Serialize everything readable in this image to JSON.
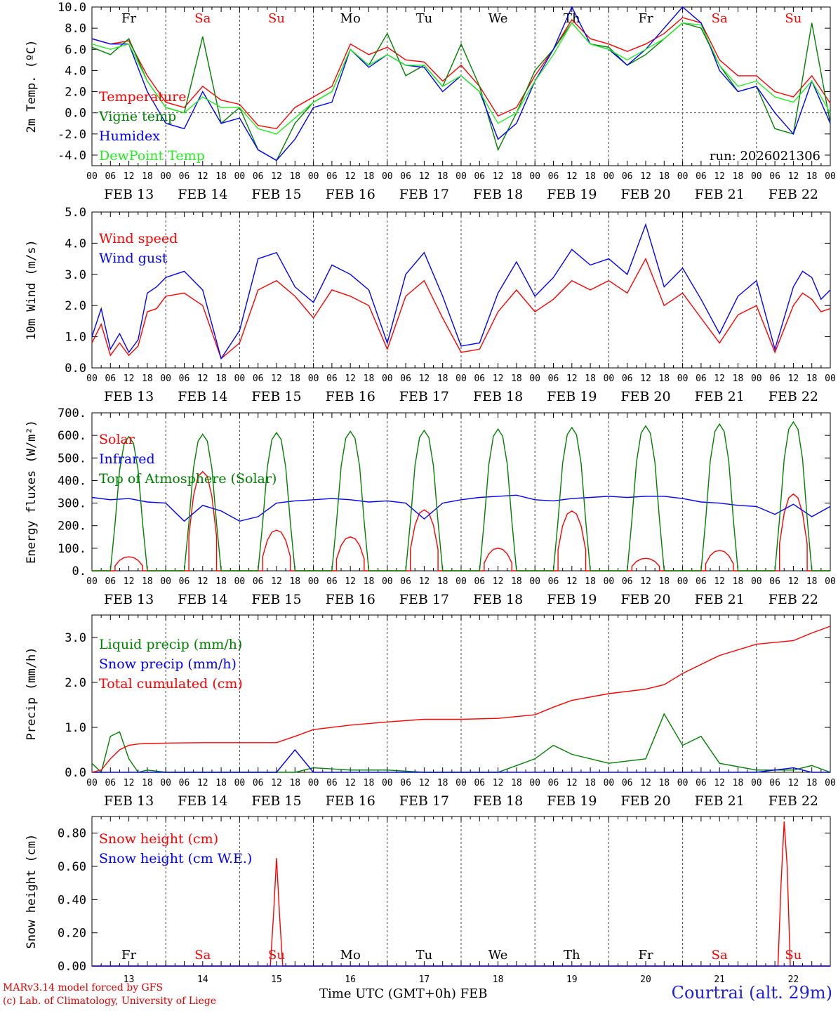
{
  "days": {
    "names": [
      "Fr",
      "Sa",
      "Su",
      "Mo",
      "Tu",
      "We",
      "Th",
      "Fr",
      "Sa",
      "Su"
    ],
    "weekend": [
      false,
      true,
      true,
      false,
      false,
      false,
      false,
      false,
      true,
      true
    ],
    "dates": [
      "FEB 13",
      "FEB 14",
      "FEB 15",
      "FEB 16",
      "FEB 17",
      "FEB 18",
      "FEB 19",
      "FEB 20",
      "FEB 21",
      "FEB 22"
    ],
    "day_numbers": [
      "13",
      "14",
      "15",
      "16",
      "17",
      "18",
      "19",
      "20",
      "21",
      "22"
    ],
    "hour_ticks": [
      "00",
      "06",
      "12",
      "18"
    ],
    "final_tick": "00"
  },
  "colors": {
    "red": "#ff0000",
    "green": "#008000",
    "blue": "#0000ff",
    "lightgreen": "#22ee22"
  },
  "chart_data": [
    {
      "type": "line",
      "id": "temp",
      "ylabel": "2m Temp. (ºC)",
      "ylim": [
        -5.0,
        10.0
      ],
      "yticks": [
        "-4.0",
        "-2.0",
        "0.0",
        "2.0",
        "4.0",
        "6.0",
        "8.0",
        "10.0"
      ],
      "ytick_values": [
        -4,
        -2,
        0,
        2,
        4,
        6,
        8,
        10
      ],
      "run_label": "run: 2026021306",
      "x_hours": [
        0,
        6,
        12,
        18,
        24,
        30,
        36,
        42,
        48,
        54,
        60,
        66,
        72,
        78,
        84,
        90,
        96,
        102,
        108,
        114,
        120,
        126,
        132,
        138,
        144,
        150,
        156,
        162,
        168,
        174,
        180,
        186,
        192,
        198,
        204,
        210,
        216,
        222,
        228,
        234,
        240
      ],
      "series": [
        {
          "name": "Temperature",
          "color": "red",
          "values": [
            7.0,
            6.5,
            6.8,
            3.5,
            1.0,
            0.5,
            2.5,
            1.2,
            0.8,
            -1.2,
            -1.5,
            0.5,
            1.5,
            2.5,
            6.5,
            5.5,
            6.2,
            5.0,
            4.8,
            3.0,
            4.5,
            2.5,
            -0.3,
            0.5,
            3.5,
            6.0,
            8.8,
            7.0,
            6.5,
            5.8,
            6.5,
            7.5,
            9.0,
            8.5,
            5.0,
            3.5,
            3.5,
            2.0,
            1.5,
            3.5,
            0.9
          ]
        },
        {
          "name": "Vigne temp",
          "color": "green",
          "values": [
            6.2,
            5.5,
            7.0,
            3.0,
            0.5,
            0.0,
            7.2,
            -1.0,
            0.5,
            -3.5,
            -4.5,
            -1.0,
            1.0,
            2.0,
            6.0,
            4.5,
            7.5,
            3.5,
            4.5,
            2.5,
            6.5,
            2.5,
            -3.5,
            0.0,
            4.0,
            6.0,
            8.5,
            6.5,
            6.2,
            4.5,
            5.5,
            7.0,
            8.5,
            8.0,
            4.5,
            2.0,
            2.5,
            -1.5,
            -2.0,
            8.5,
            -1.0
          ]
        },
        {
          "name": "Humidex",
          "color": "blue",
          "values": [
            7.0,
            6.5,
            6.5,
            2.0,
            -1.0,
            -1.5,
            2.0,
            -1.0,
            -0.5,
            -3.5,
            -4.5,
            -2.5,
            0.5,
            1.0,
            6.0,
            4.3,
            5.5,
            4.5,
            4.3,
            2.0,
            3.5,
            2.0,
            -2.5,
            -1.0,
            3.0,
            6.0,
            10.0,
            6.5,
            6.0,
            4.5,
            6.0,
            8.0,
            10.0,
            8.5,
            4.0,
            2.0,
            2.5,
            0.0,
            -2.0,
            3.0,
            -1.0
          ]
        },
        {
          "name": "DewPoint Temp",
          "color": "lightgreen",
          "values": [
            6.5,
            6.0,
            6.5,
            3.0,
            0.5,
            0.0,
            1.5,
            0.5,
            0.5,
            -1.5,
            -2.0,
            -0.5,
            1.0,
            2.0,
            6.0,
            4.5,
            5.5,
            4.5,
            4.5,
            2.5,
            3.5,
            2.0,
            -1.0,
            0.0,
            3.0,
            5.5,
            8.5,
            6.5,
            6.0,
            5.0,
            6.0,
            7.0,
            8.5,
            8.3,
            4.5,
            2.5,
            3.0,
            1.5,
            1.0,
            3.0,
            0.0
          ]
        }
      ]
    },
    {
      "type": "line",
      "id": "wind",
      "ylabel": "10m Wind (m/s)",
      "ylim": [
        0.0,
        5.0
      ],
      "yticks": [
        "0.0",
        "1.0",
        "2.0",
        "3.0",
        "4.0",
        "5.0"
      ],
      "ytick_values": [
        0,
        1,
        2,
        3,
        4,
        5
      ],
      "x_hours": [
        0,
        3,
        6,
        9,
        12,
        15,
        18,
        21,
        24,
        30,
        36,
        42,
        48,
        54,
        60,
        66,
        72,
        78,
        84,
        90,
        96,
        102,
        108,
        114,
        120,
        126,
        132,
        138,
        144,
        150,
        156,
        162,
        168,
        174,
        180,
        186,
        192,
        198,
        204,
        210,
        216,
        222,
        228,
        231,
        234,
        237,
        240
      ],
      "series": [
        {
          "name": "Wind speed",
          "color": "red",
          "values": [
            0.8,
            1.4,
            0.4,
            0.8,
            0.4,
            0.7,
            1.8,
            1.9,
            2.3,
            2.4,
            2.0,
            0.3,
            0.8,
            2.5,
            2.8,
            2.3,
            1.6,
            2.5,
            2.3,
            2.0,
            0.6,
            2.3,
            2.8,
            1.6,
            0.5,
            0.6,
            1.8,
            2.5,
            1.8,
            2.2,
            2.8,
            2.5,
            2.8,
            2.4,
            3.5,
            2.0,
            2.4,
            1.6,
            0.8,
            1.7,
            2.0,
            0.5,
            2.0,
            2.4,
            2.2,
            1.8,
            1.9
          ]
        },
        {
          "name": "Wind gust",
          "color": "blue",
          "values": [
            1.0,
            1.9,
            0.6,
            1.1,
            0.5,
            0.9,
            2.4,
            2.6,
            2.9,
            3.1,
            2.5,
            0.3,
            1.2,
            3.5,
            3.7,
            2.6,
            2.1,
            3.3,
            3.0,
            2.5,
            0.8,
            3.0,
            3.7,
            2.3,
            0.7,
            0.8,
            2.4,
            3.4,
            2.3,
            2.9,
            3.8,
            3.3,
            3.5,
            3.0,
            4.6,
            2.6,
            3.2,
            2.2,
            1.1,
            2.3,
            2.8,
            0.6,
            2.6,
            3.1,
            2.9,
            2.2,
            2.5
          ]
        }
      ]
    },
    {
      "type": "line",
      "id": "flux",
      "ylabel": "Energy fluxes (W/m²)",
      "ylim": [
        0,
        700
      ],
      "yticks": [
        "0.",
        "100.",
        "200.",
        "300.",
        "400.",
        "500.",
        "600.",
        "700."
      ],
      "ytick_values": [
        0,
        100,
        200,
        300,
        400,
        500,
        600,
        700
      ],
      "daily_toa_peak": [
        595,
        605,
        612,
        618,
        622,
        628,
        635,
        642,
        650,
        660
      ],
      "daily_solar_peak": [
        62,
        440,
        180,
        150,
        270,
        100,
        265,
        55,
        90,
        340
      ],
      "x_hours": [
        0,
        6,
        12,
        18,
        24,
        30,
        36,
        42,
        48,
        54,
        60,
        66,
        72,
        78,
        84,
        90,
        96,
        102,
        108,
        114,
        120,
        126,
        132,
        138,
        144,
        150,
        156,
        162,
        168,
        174,
        180,
        186,
        192,
        198,
        204,
        210,
        216,
        222,
        228,
        234,
        240
      ],
      "series": [
        {
          "name": "Solar",
          "color": "red",
          "values": null
        },
        {
          "name": "Infrared",
          "color": "blue",
          "values": [
            325,
            315,
            320,
            305,
            300,
            220,
            290,
            265,
            220,
            240,
            300,
            310,
            315,
            320,
            315,
            305,
            310,
            300,
            230,
            300,
            315,
            325,
            330,
            335,
            315,
            310,
            320,
            325,
            330,
            325,
            330,
            330,
            320,
            305,
            300,
            290,
            285,
            250,
            295,
            240,
            285
          ]
        },
        {
          "name": "Top of Atmosphere (Solar)",
          "color": "green",
          "values": null
        }
      ]
    },
    {
      "type": "line",
      "id": "precip",
      "ylabel": "Precip (mm/h)",
      "ylim": [
        0.0,
        3.5
      ],
      "yticks": [
        "0.0",
        "1.0",
        "2.0",
        "3.0"
      ],
      "ytick_values": [
        0,
        1,
        2,
        3
      ],
      "x_hours": [
        0,
        3,
        6,
        9,
        12,
        15,
        18,
        24,
        36,
        48,
        60,
        66,
        72,
        84,
        96,
        108,
        120,
        132,
        144,
        150,
        156,
        168,
        180,
        186,
        192,
        198,
        204,
        216,
        228,
        234,
        240
      ],
      "series": [
        {
          "name": "Liquid precip (mm/h)",
          "color": "green",
          "values": [
            0.2,
            0.0,
            0.8,
            0.9,
            0.3,
            0.0,
            0.05,
            0.0,
            0.0,
            0.0,
            0.0,
            0.0,
            0.1,
            0.05,
            0.05,
            0.0,
            0.0,
            0.0,
            0.3,
            0.6,
            0.4,
            0.2,
            0.3,
            1.3,
            0.6,
            0.8,
            0.2,
            0.05,
            0.05,
            0.15,
            0.0
          ]
        },
        {
          "name": "Snow precip (mm/h)",
          "color": "blue",
          "values": [
            0.0,
            0.0,
            0.0,
            0.0,
            0.0,
            0.0,
            0.0,
            0.0,
            0.0,
            0.0,
            0.0,
            0.5,
            0.0,
            0.0,
            0.0,
            0.0,
            0.0,
            0.0,
            0.0,
            0.0,
            0.0,
            0.0,
            0.0,
            0.0,
            0.0,
            0.0,
            0.0,
            0.0,
            0.1,
            0.0,
            0.0
          ]
        },
        {
          "name": "Total cumulated (cm)",
          "color": "red",
          "values": [
            0.0,
            0.05,
            0.3,
            0.5,
            0.6,
            0.63,
            0.64,
            0.65,
            0.66,
            0.66,
            0.66,
            0.8,
            0.95,
            1.05,
            1.12,
            1.18,
            1.18,
            1.2,
            1.28,
            1.45,
            1.6,
            1.75,
            1.85,
            1.95,
            2.2,
            2.4,
            2.6,
            2.85,
            2.93,
            3.1,
            3.25
          ]
        }
      ]
    },
    {
      "type": "line",
      "id": "snow",
      "ylabel": "Snow height (cm)",
      "ylim": [
        0.0,
        0.9
      ],
      "yticks": [
        "0.00",
        "0.20",
        "0.40",
        "0.60",
        "0.80"
      ],
      "ytick_values": [
        0,
        0.2,
        0.4,
        0.6,
        0.8
      ],
      "x_hours": [
        0,
        58,
        59,
        60,
        61,
        62,
        223,
        224,
        225,
        226,
        227,
        240
      ],
      "xlabel": "Time UTC (GMT+0h)",
      "xmonth": "FEB",
      "series": [
        {
          "name": "Snow height (cm)",
          "color": "red",
          "values": [
            0,
            0,
            0.3,
            0.65,
            0.3,
            0,
            0,
            0.5,
            0.87,
            0.6,
            0,
            0
          ]
        },
        {
          "name": "Snow height (cm W.E.)",
          "color": "blue",
          "values": [
            0,
            0,
            0,
            0,
            0,
            0,
            0,
            0,
            0,
            0,
            0,
            0
          ]
        }
      ]
    }
  ],
  "footer": {
    "model": "MARv3.14 model forced by GFS",
    "copyright": "(c) Lab. of Climatology, University of Liege",
    "axis_title": "Time UTC (GMT+0h) FEB",
    "station": "Courtrai (alt. 29m)"
  }
}
